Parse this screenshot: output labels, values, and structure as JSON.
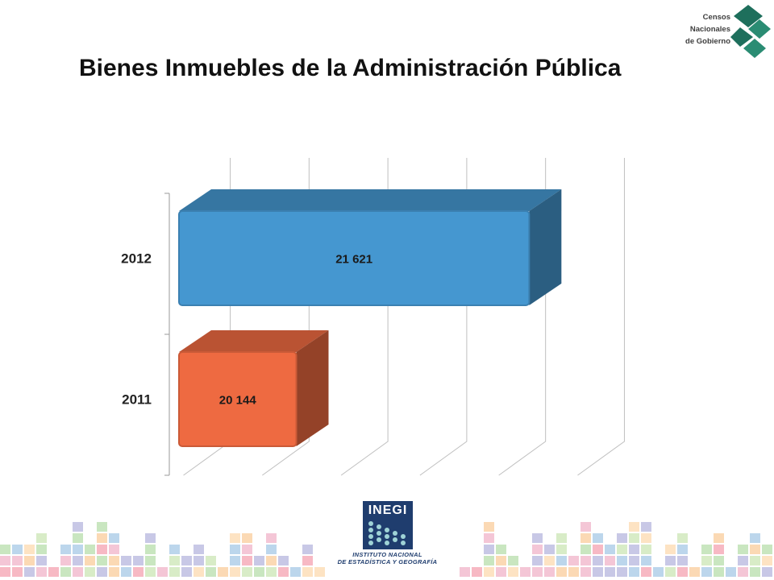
{
  "page": {
    "title": "Bienes Inmuebles de la Administración Pública"
  },
  "logo_top": {
    "line1": "Censos",
    "line2": "Nacionales",
    "line3": "de Gobierno",
    "accent": "#1e6f5c"
  },
  "logo_bottom": {
    "word": "INEGI",
    "line1": "INSTITUTO NACIONAL",
    "line2": "DE ESTADÍSTICA Y GEOGRAFÍA",
    "accent": "#1f3d6e"
  },
  "chart_data": {
    "type": "bar",
    "orientation": "horizontal",
    "style": "3d",
    "categories": [
      "2012",
      "2011"
    ],
    "series": [
      {
        "values": [
          21621,
          20144
        ],
        "value_labels": [
          "21 621",
          "20 144"
        ],
        "colors": [
          "#4597d0",
          "#ee6a41"
        ]
      }
    ],
    "xlim": [
      19400,
      22100
    ],
    "grid": true,
    "legend": "none"
  }
}
